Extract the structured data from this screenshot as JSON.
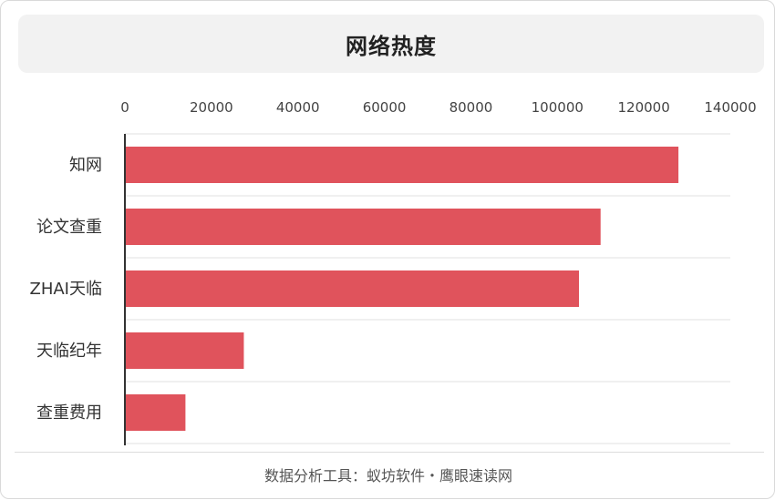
{
  "chart_data": {
    "type": "bar",
    "orientation": "horizontal",
    "title": "网络热度",
    "categories": [
      "知网",
      "论文查重",
      "ZHAI天临",
      "天临纪年",
      "查重费用"
    ],
    "values": [
      128000,
      110000,
      105000,
      27500,
      14000
    ],
    "xlim": [
      0,
      140000
    ],
    "xticks": [
      0,
      20000,
      40000,
      60000,
      80000,
      100000,
      120000,
      140000
    ],
    "xlabel": "",
    "ylabel": "",
    "grid": true,
    "bar_color": "#e0535c"
  },
  "footer": {
    "source": "数据分析工具：蚁坊软件・鹰眼速读网"
  }
}
